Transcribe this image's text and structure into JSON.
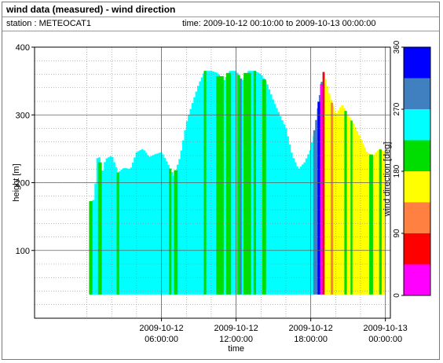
{
  "header": {
    "title": "wind data (measured) - wind direction",
    "station": "station : METEOCAT1",
    "time_range": "time: 2009-10-12 00:10:00 to 2009-10-13 00:00:00"
  },
  "chart_data": {
    "type": "heatmap",
    "xlabel": "time",
    "ylabel": "height [m]",
    "colorbar_label": "wind direction [deg]",
    "ylim": [
      0,
      400
    ],
    "y_ticks": [
      100,
      200,
      300,
      400
    ],
    "xlim_hours": [
      -4.2,
      24.4
    ],
    "x_ticks": [
      {
        "hour": 6,
        "line1": "2009-10-12",
        "line2": "06:00:00"
      },
      {
        "hour": 12,
        "line1": "2009-10-12",
        "line2": "12:00:00"
      },
      {
        "hour": 18,
        "line1": "2009-10-12",
        "line2": "18:00:00"
      },
      {
        "hour": 24,
        "line1": "2009-10-13",
        "line2": "00:00:00"
      }
    ],
    "colorbar_ticks": [
      0,
      90,
      180,
      270,
      360
    ],
    "color_bins": [
      {
        "from": 0,
        "to": 45,
        "color": "#ff00ff"
      },
      {
        "from": 45,
        "to": 90,
        "color": "#ff0000"
      },
      {
        "from": 90,
        "to": 135,
        "color": "#ff8040"
      },
      {
        "from": 135,
        "to": 180,
        "color": "#ffff00"
      },
      {
        "from": 180,
        "to": 225,
        "color": "#00dd00"
      },
      {
        "from": 225,
        "to": 270,
        "color": "#00ffff"
      },
      {
        "from": 270,
        "to": 315,
        "color": "#4080c0"
      },
      {
        "from": 315,
        "to": 360,
        "color": "#0000ff"
      }
    ],
    "data_start_hour": 0.17,
    "data_end_hour": 24.0,
    "height_bottom_m": 35,
    "profile_top_height_m": [
      [
        0.0,
        170
      ],
      [
        0.6,
        175
      ],
      [
        0.9,
        250
      ],
      [
        1.2,
        210
      ],
      [
        1.5,
        235
      ],
      [
        2.0,
        240
      ],
      [
        2.5,
        215
      ],
      [
        3.0,
        222
      ],
      [
        3.5,
        220
      ],
      [
        4.0,
        245
      ],
      [
        4.5,
        250
      ],
      [
        5.0,
        238
      ],
      [
        5.5,
        242
      ],
      [
        6.0,
        245
      ],
      [
        6.5,
        228
      ],
      [
        7.0,
        210
      ],
      [
        7.5,
        238
      ],
      [
        8.0,
        288
      ],
      [
        8.5,
        318
      ],
      [
        9.0,
        346
      ],
      [
        9.5,
        365
      ],
      [
        10.0,
        365
      ],
      [
        10.5,
        362
      ],
      [
        11.0,
        350
      ],
      [
        11.5,
        365
      ],
      [
        12.0,
        365
      ],
      [
        12.5,
        350
      ],
      [
        13.0,
        365
      ],
      [
        13.5,
        365
      ],
      [
        14.0,
        360
      ],
      [
        14.5,
        345
      ],
      [
        15.0,
        320
      ],
      [
        15.5,
        300
      ],
      [
        16.0,
        280
      ],
      [
        16.5,
        240
      ],
      [
        17.0,
        220
      ],
      [
        17.5,
        230
      ],
      [
        18.0,
        250
      ],
      [
        18.5,
        300
      ],
      [
        19.0,
        365
      ],
      [
        19.5,
        330
      ],
      [
        20.0,
        300
      ],
      [
        20.5,
        315
      ],
      [
        21.0,
        300
      ],
      [
        21.5,
        285
      ],
      [
        22.0,
        265
      ],
      [
        22.5,
        245
      ],
      [
        23.0,
        240
      ],
      [
        23.5,
        250
      ],
      [
        24.0,
        245
      ]
    ],
    "direction_bands_deg": [
      {
        "from_hour": 0.17,
        "to_hour": 18.2,
        "direction": 250
      },
      {
        "from_hour": 18.2,
        "to_hour": 19.1,
        "direction": 300
      },
      {
        "from_hour": 19.1,
        "to_hour": 24.0,
        "direction": 160
      }
    ],
    "direction_columns_deg": [
      {
        "from_hour": 0.2,
        "to_hour": 0.45,
        "direction": 200
      },
      {
        "from_hour": 0.9,
        "to_hour": 1.2,
        "direction": 200
      },
      {
        "from_hour": 2.4,
        "to_hour": 2.6,
        "direction": 200
      },
      {
        "from_hour": 6.6,
        "to_hour": 6.8,
        "direction": 200
      },
      {
        "from_hour": 7.0,
        "to_hour": 7.3,
        "direction": 200
      },
      {
        "from_hour": 9.4,
        "to_hour": 9.6,
        "direction": 200
      },
      {
        "from_hour": 10.4,
        "to_hour": 11.0,
        "direction": 200
      },
      {
        "from_hour": 11.2,
        "to_hour": 11.6,
        "direction": 200
      },
      {
        "from_hour": 12.1,
        "to_hour": 12.3,
        "direction": 200
      },
      {
        "from_hour": 12.6,
        "to_hour": 13.2,
        "direction": 200
      },
      {
        "from_hour": 13.4,
        "to_hour": 13.6,
        "direction": 200
      },
      {
        "from_hour": 14.1,
        "to_hour": 14.4,
        "direction": 200
      },
      {
        "from_hour": 12.3,
        "to_hour": 12.45,
        "direction": 290
      },
      {
        "from_hour": 18.55,
        "to_hour": 18.75,
        "direction": 340
      },
      {
        "from_hour": 18.75,
        "to_hour": 18.95,
        "direction": 30
      },
      {
        "from_hour": 18.95,
        "to_hour": 19.1,
        "direction": 60
      },
      {
        "from_hour": 19.6,
        "to_hour": 19.8,
        "direction": 120
      },
      {
        "from_hour": 20.7,
        "to_hour": 20.9,
        "direction": 200
      },
      {
        "from_hour": 21.2,
        "to_hour": 21.35,
        "direction": 200
      },
      {
        "from_hour": 22.7,
        "to_hour": 23.0,
        "direction": 200
      },
      {
        "from_hour": 23.5,
        "to_hour": 23.7,
        "direction": 200
      }
    ],
    "colors": {
      "plot_border": "#000000",
      "grid": "#808080",
      "frame_border": "#7a7a7a"
    }
  }
}
